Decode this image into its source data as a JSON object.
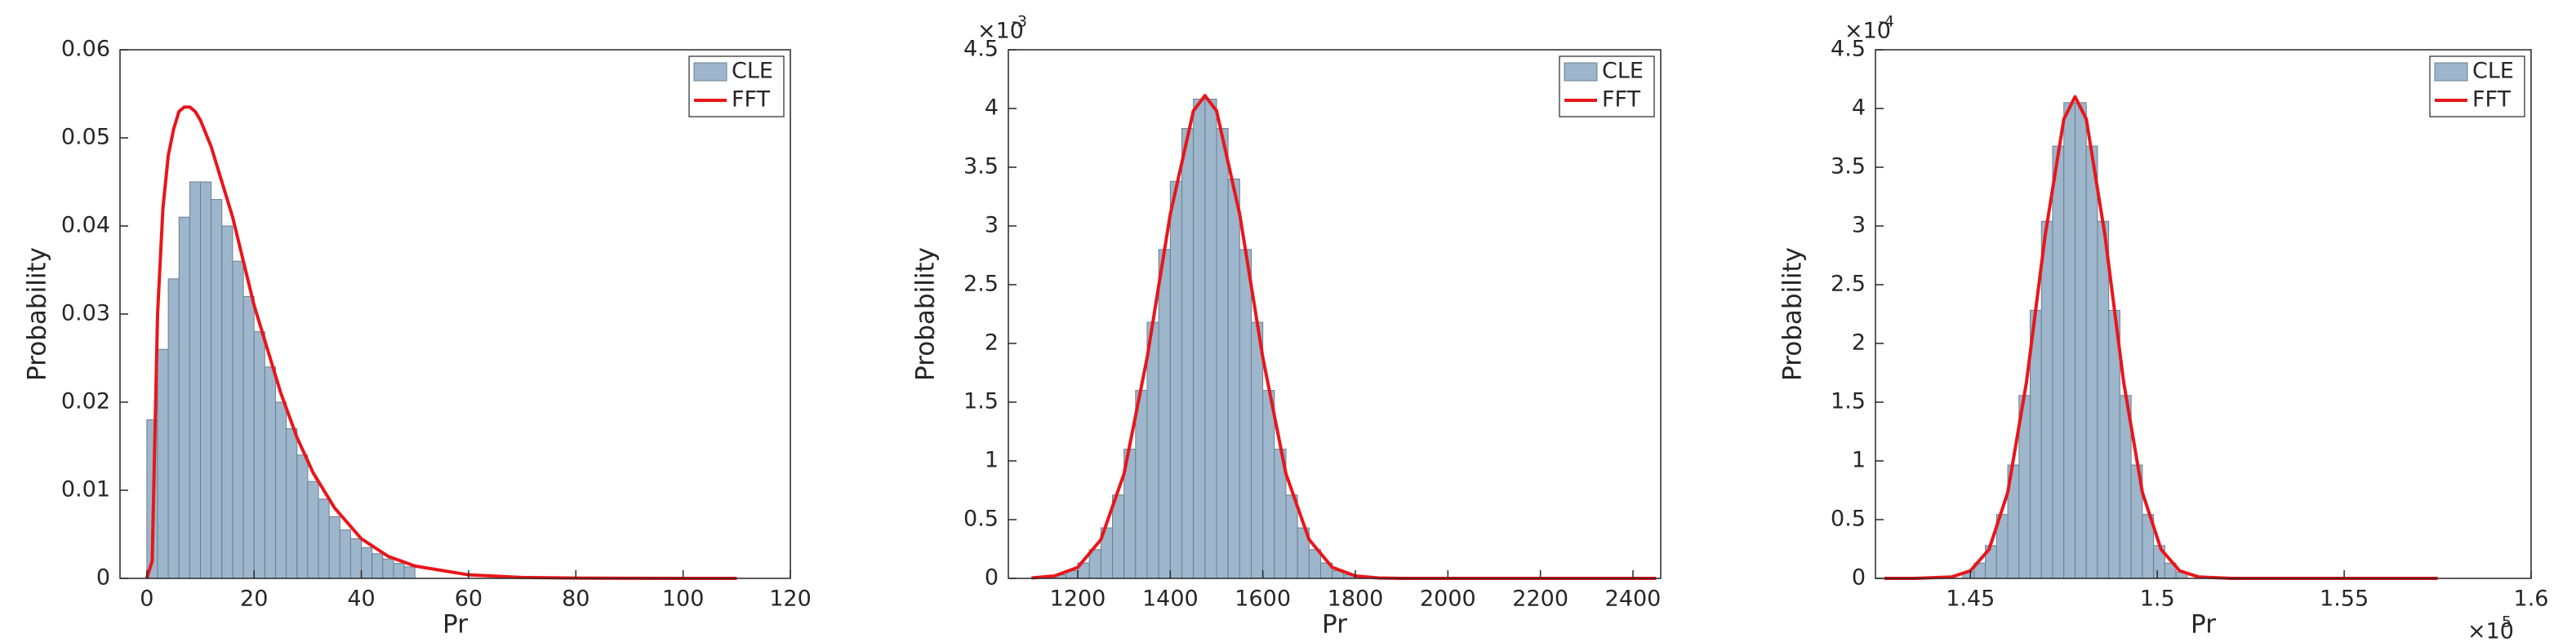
{
  "chart_data": [
    {
      "type": "histogram",
      "xlabel": "Pr",
      "ylabel": "Probability",
      "bins": [
        0,
        2,
        4,
        6,
        8,
        10,
        12,
        14,
        16,
        18,
        20,
        22,
        24,
        26,
        28,
        30,
        32,
        34,
        36,
        38,
        40,
        42,
        44,
        46,
        48,
        50
      ],
      "series": [
        {
          "name": "CLE",
          "color": "#9db6cb",
          "values": [
            0.018,
            0.026,
            0.034,
            0.041,
            0.045,
            0.045,
            0.043,
            0.04,
            0.036,
            0.032,
            0.028,
            0.024,
            0.02,
            0.017,
            0.014,
            0.011,
            0.009,
            0.007,
            0.0055,
            0.0045,
            0.0035,
            0.0028,
            0.0022,
            0.0017,
            0.0013
          ]
        },
        {
          "name": "FFT",
          "type": "line",
          "color": "#e8161b",
          "x": [
            0,
            1,
            2,
            3,
            4,
            5,
            6,
            7,
            8,
            9,
            10,
            12,
            14,
            16,
            18,
            20,
            22,
            25,
            28,
            31,
            35,
            40,
            45,
            50,
            60,
            70,
            80,
            90,
            100,
            110
          ],
          "values": [
            0,
            0.002,
            0.03,
            0.042,
            0.048,
            0.051,
            0.053,
            0.0535,
            0.0535,
            0.053,
            0.052,
            0.049,
            0.045,
            0.041,
            0.036,
            0.031,
            0.027,
            0.021,
            0.016,
            0.012,
            0.008,
            0.0045,
            0.0025,
            0.0014,
            0.0004,
            0.0001,
            3e-05,
            1e-05,
            0,
            0
          ]
        }
      ],
      "xlim": [
        -5,
        120
      ],
      "ylim": [
        0,
        0.06
      ],
      "xticks": [
        0,
        20,
        40,
        60,
        80,
        100,
        120
      ],
      "yticks": [
        0,
        0.01,
        0.02,
        0.03,
        0.04,
        0.05,
        0.06
      ],
      "legend": "upper right"
    },
    {
      "type": "histogram",
      "xlabel": "Pr",
      "ylabel": "Probability",
      "y_multiplier": {
        "base": "×10",
        "exponent": "-3"
      },
      "bins": [
        1150,
        1175,
        1200,
        1225,
        1250,
        1275,
        1300,
        1325,
        1350,
        1375,
        1400,
        1425,
        1450,
        1475,
        1500,
        1525,
        1550,
        1575,
        1600,
        1625,
        1650,
        1675,
        1700,
        1725,
        1750,
        1775,
        1800
      ],
      "series": [
        {
          "name": "CLE",
          "color": "#9db6cb",
          "values": [
            3.1e-05,
            6.6e-05,
            0.000131,
            0.000245,
            0.00043,
            0.00071,
            0.0011,
            0.0016,
            0.00218,
            0.0028,
            0.00338,
            0.00383,
            0.00408,
            0.00408,
            0.00383,
            0.0034,
            0.0028,
            0.00218,
            0.0016,
            0.0011,
            0.00071,
            0.00043,
            0.000245,
            0.000131,
            6.6e-05,
            3.1e-05
          ]
        },
        {
          "name": "FFT",
          "type": "line",
          "color": "#e8161b",
          "x": [
            1100,
            1150,
            1200,
            1250,
            1300,
            1350,
            1400,
            1450,
            1475,
            1500,
            1550,
            1600,
            1650,
            1700,
            1750,
            1800,
            1850,
            1900,
            2000,
            2200,
            2450
          ],
          "values": [
            3.6e-06,
            2.1e-05,
            9.4e-05,
            0.00033,
            0.00089,
            0.00188,
            0.0031,
            0.00398,
            0.00411,
            0.00398,
            0.0031,
            0.00188,
            0.00089,
            0.00033,
            9.4e-05,
            2.1e-05,
            3.6e-06,
            0,
            0,
            0,
            0
          ]
        }
      ],
      "xlim": [
        1050,
        2460
      ],
      "ylim": [
        0,
        0.0045
      ],
      "xticks": [
        1200,
        1400,
        1600,
        1800,
        2000,
        2200,
        2400
      ],
      "yticks": [
        0,
        {
          "value": 0.0005,
          "label": "0.5"
        },
        {
          "value": 0.001,
          "label": "1"
        },
        {
          "value": 0.0015,
          "label": "1.5"
        },
        {
          "value": 0.002,
          "label": "2"
        },
        {
          "value": 0.0025,
          "label": "2.5"
        },
        {
          "value": 0.003,
          "label": "3"
        },
        {
          "value": 0.0035,
          "label": "3.5"
        },
        {
          "value": 0.004,
          "label": "4"
        },
        {
          "value": 0.0045,
          "label": "4.5"
        }
      ],
      "legend": "upper right"
    },
    {
      "type": "histogram",
      "xlabel": "Pr",
      "ylabel": "Probability",
      "y_multiplier": {
        "base": "×10",
        "exponent": "-4"
      },
      "x_multiplier": {
        "base": "×10",
        "exponent": "5"
      },
      "bins": [
        144800,
        145100,
        145400,
        145700,
        146000,
        146300,
        146600,
        146900,
        147200,
        147500,
        147800,
        148100,
        148400,
        148700,
        149000,
        149300,
        149600,
        149900,
        150200,
        150500,
        150800
      ],
      "series": [
        {
          "name": "CLE",
          "color": "#9db6cb",
          "values": [
            5.5e-06,
            1.3e-05,
            2.79e-05,
            5.44e-05,
            9.65e-05,
            0.0001557,
            0.0002282,
            0.000304,
            0.000368,
            0.000405,
            0.000405,
            0.000368,
            0.000304,
            0.0002282,
            0.0001557,
            9.65e-05,
            5.44e-05,
            2.79e-05,
            1.3e-05,
            5.5e-06
          ]
        },
        {
          "name": "FFT",
          "type": "line",
          "color": "#e8161b",
          "x": [
            142700,
            143500,
            144500,
            145000,
            145500,
            146000,
            146500,
            147000,
            147500,
            147800,
            148100,
            148600,
            149100,
            149600,
            150100,
            150600,
            151100,
            152000,
            153000,
            155000,
            157500
          ],
          "values": [
            0,
            0,
            1.25e-06,
            6.4e-06,
            2.47e-05,
            7.33e-05,
            0.000167,
            0.000292,
            0.000391,
            0.00041,
            0.000391,
            0.000292,
            0.000167,
            7.33e-05,
            2.47e-05,
            6.4e-06,
            1.25e-06,
            0,
            0,
            0,
            0
          ]
        }
      ],
      "xlim": [
        142460,
        160000
      ],
      "ylim": [
        0,
        0.00045
      ],
      "xticks": [
        {
          "value": 145000,
          "label": "1.45"
        },
        {
          "value": 150000,
          "label": "1.5"
        },
        {
          "value": 155000,
          "label": "1.55"
        },
        {
          "value": 160000,
          "label": "1.6"
        }
      ],
      "yticks": [
        0,
        {
          "value": 5e-05,
          "label": "0.5"
        },
        {
          "value": 0.0001,
          "label": "1"
        },
        {
          "value": 0.00015,
          "label": "1.5"
        },
        {
          "value": 0.0002,
          "label": "2"
        },
        {
          "value": 0.00025,
          "label": "2.5"
        },
        {
          "value": 0.0003,
          "label": "3"
        },
        {
          "value": 0.00035,
          "label": "3.5"
        },
        {
          "value": 0.0004,
          "label": "4"
        },
        {
          "value": 0.00045,
          "label": "4.5"
        }
      ],
      "legend": "upper right"
    }
  ]
}
